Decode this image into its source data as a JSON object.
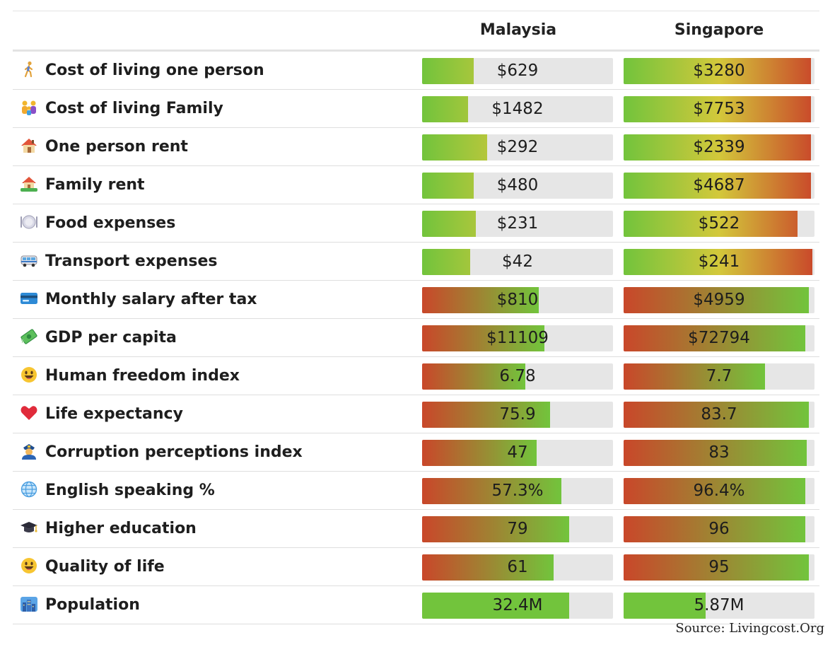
{
  "columns": [
    "Malaysia",
    "Singapore"
  ],
  "source": "Source: Livingcost.Org",
  "colors": {
    "green": "#72c43c",
    "yellow": "#d3c83b",
    "red": "#c9472a",
    "empty": "#e6e6e6"
  },
  "chart_data": {
    "type": "table",
    "columns": [
      "Malaysia",
      "Singapore"
    ],
    "rows": [
      {
        "label": "Cost of living one person",
        "icon": "person-walking-icon",
        "values": [
          "$629",
          "$3280"
        ],
        "fills": [
          0.27,
          0.98
        ],
        "scheme": "up"
      },
      {
        "label": "Cost of living Family",
        "icon": "family-icon",
        "values": [
          "$1482",
          "$7753"
        ],
        "fills": [
          0.24,
          0.98
        ],
        "scheme": "up"
      },
      {
        "label": "One person rent",
        "icon": "house-icon",
        "values": [
          "$292",
          "$2339"
        ],
        "fills": [
          0.34,
          0.98
        ],
        "scheme": "up"
      },
      {
        "label": "Family rent",
        "icon": "house-garden-icon",
        "values": [
          "$480",
          "$4687"
        ],
        "fills": [
          0.27,
          0.98
        ],
        "scheme": "up"
      },
      {
        "label": "Food expenses",
        "icon": "plate-icon",
        "values": [
          "$231",
          "$522"
        ],
        "fills": [
          0.28,
          0.91
        ],
        "scheme": "up"
      },
      {
        "label": "Transport expenses",
        "icon": "bus-icon",
        "values": [
          "$42",
          "$241"
        ],
        "fills": [
          0.25,
          0.99
        ],
        "scheme": "up"
      },
      {
        "label": "Monthly salary after tax",
        "icon": "credit-card-icon",
        "values": [
          "$810",
          "$4959"
        ],
        "fills": [
          0.61,
          0.97
        ],
        "scheme": "down"
      },
      {
        "label": "GDP per capita",
        "icon": "money-icon",
        "values": [
          "$11109",
          "$72794"
        ],
        "fills": [
          0.64,
          0.95
        ],
        "scheme": "down"
      },
      {
        "label": "Human freedom index",
        "icon": "smiley-icon",
        "values": [
          "6.78",
          "7.7"
        ],
        "fills": [
          0.54,
          0.74
        ],
        "scheme": "down"
      },
      {
        "label": "Life expectancy",
        "icon": "heart-icon",
        "values": [
          "75.9",
          "83.7"
        ],
        "fills": [
          0.67,
          0.97
        ],
        "scheme": "down"
      },
      {
        "label": "Corruption perceptions index",
        "icon": "police-officer-icon",
        "values": [
          "47",
          "83"
        ],
        "fills": [
          0.6,
          0.96
        ],
        "scheme": "down"
      },
      {
        "label": "English speaking %",
        "icon": "globe-icon",
        "values": [
          "57.3%",
          "96.4%"
        ],
        "fills": [
          0.73,
          0.95
        ],
        "scheme": "down"
      },
      {
        "label": "Higher education",
        "icon": "graduation-cap-icon",
        "values": [
          "79",
          "96"
        ],
        "fills": [
          0.77,
          0.95
        ],
        "scheme": "down"
      },
      {
        "label": "Quality of life",
        "icon": "smiley-icon",
        "values": [
          "61",
          "95"
        ],
        "fills": [
          0.69,
          0.97
        ],
        "scheme": "down"
      },
      {
        "label": "Population",
        "icon": "city-icon",
        "values": [
          "32.4M",
          "5.87M"
        ],
        "fills": [
          0.77,
          0.43
        ],
        "scheme": "flat"
      }
    ]
  }
}
